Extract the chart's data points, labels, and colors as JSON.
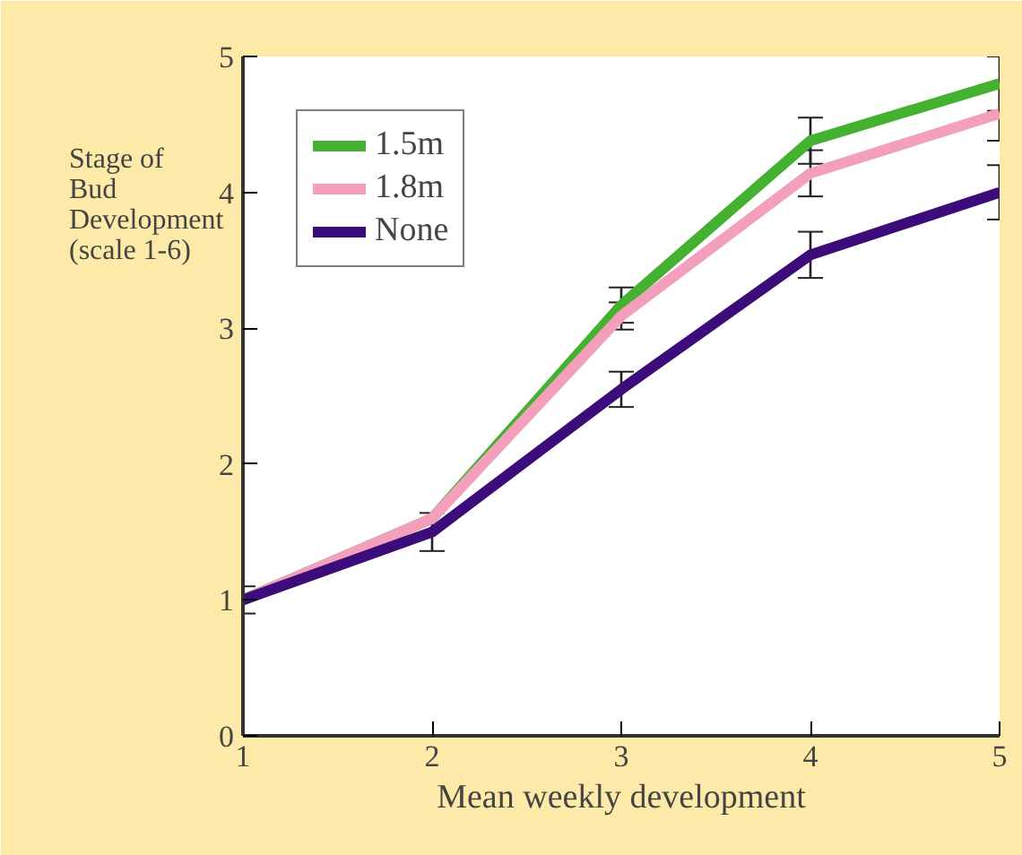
{
  "chart_data": {
    "type": "line",
    "xlabel": "Mean weekly development",
    "ylabel": "Stage of\nBud\nDevelopment\n(scale 1-6)",
    "x": [
      1,
      2,
      3,
      4,
      5
    ],
    "series": [
      {
        "name": "1.5m",
        "color": "#44b130",
        "values": [
          1.0,
          1.6,
          3.17,
          4.38,
          4.8
        ],
        "errors": [
          null,
          null,
          0.13,
          0.17,
          0.2
        ]
      },
      {
        "name": "1.8m",
        "color": "#f4a0bc",
        "values": [
          1.0,
          1.6,
          3.09,
          4.14,
          4.58
        ],
        "errors": [
          null,
          null,
          0.1,
          0.17,
          0.2
        ]
      },
      {
        "name": "None",
        "color": "#3b0c7a",
        "values": [
          1.0,
          1.5,
          2.55,
          3.54,
          4.0
        ],
        "errors": [
          0.1,
          0.14,
          0.13,
          0.17,
          0.2
        ]
      }
    ],
    "xlim": [
      1,
      5
    ],
    "ylim": [
      0,
      5
    ],
    "xticks": [
      1,
      2,
      3,
      4,
      5
    ],
    "yticks": [
      0,
      1,
      2,
      3,
      4,
      5
    ],
    "grid": false,
    "legend": "top left",
    "marker": "none",
    "line_style": "solid"
  }
}
